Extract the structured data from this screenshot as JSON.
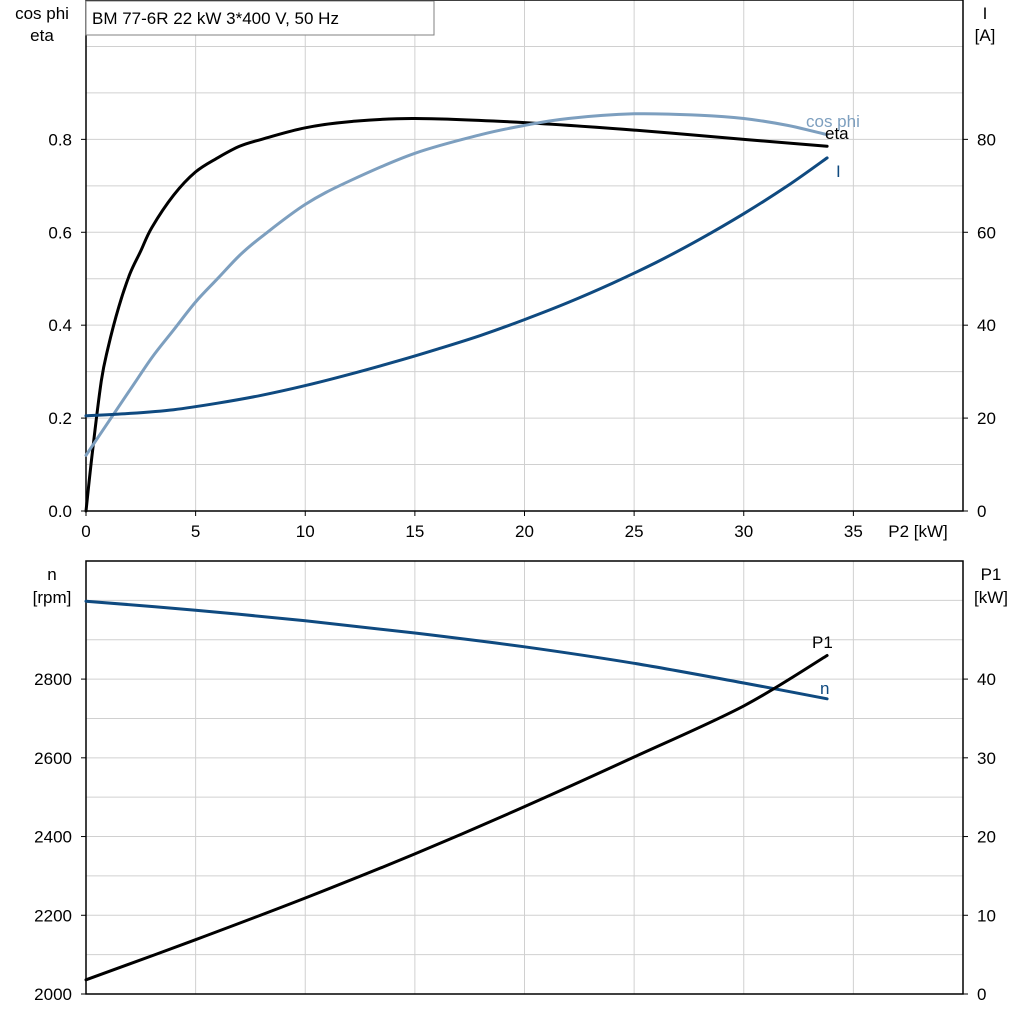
{
  "title_box": "BM 77-6R   22 kW   3*400 V, 50 Hz",
  "colors": {
    "black": "#000000",
    "dark_blue": "#0f4a80",
    "light_blue": "#7d9fbf"
  },
  "chart_data": [
    {
      "type": "line",
      "title": "BM 77-6R   22 kW   3*400 V, 50 Hz",
      "xlabel": "P2 [kW]",
      "ylabel_left": [
        "cos phi",
        "eta"
      ],
      "ylabel_right": [
        "I",
        "[A]"
      ],
      "xlim": [
        0,
        40
      ],
      "ylim_left": [
        0,
        1.1
      ],
      "ylim_right": [
        0,
        110
      ],
      "x_ticks": [
        "0",
        "5",
        "10",
        "15",
        "20",
        "25",
        "30",
        "35"
      ],
      "y_left_ticks": [
        "0.0",
        "0.2",
        "0.4",
        "0.6",
        "0.8"
      ],
      "y_right_ticks": [
        "0",
        "20",
        "40",
        "60",
        "80"
      ],
      "grid": true,
      "series": [
        {
          "name": "eta",
          "axis": "left",
          "color": "#000000",
          "x": [
            0,
            0.3,
            0.7,
            1.0,
            1.5,
            2.0,
            2.5,
            3.0,
            4.0,
            5.0,
            6.0,
            7.0,
            8.0,
            10.0,
            12.0,
            15.0,
            20.0,
            25.0,
            30.0,
            33.8
          ],
          "y": [
            0,
            0.13,
            0.28,
            0.35,
            0.44,
            0.51,
            0.56,
            0.61,
            0.68,
            0.73,
            0.76,
            0.785,
            0.8,
            0.825,
            0.838,
            0.845,
            0.836,
            0.82,
            0.8,
            0.785
          ]
        },
        {
          "name": "cos phi",
          "axis": "left",
          "color": "#7d9fbf",
          "x": [
            0,
            1,
            2,
            3,
            4,
            5,
            6,
            7,
            8,
            10,
            12,
            15,
            18,
            20,
            22,
            25,
            28,
            30,
            32,
            33.8
          ],
          "y": [
            0.12,
            0.19,
            0.26,
            0.33,
            0.39,
            0.45,
            0.5,
            0.55,
            0.59,
            0.66,
            0.71,
            0.77,
            0.81,
            0.83,
            0.845,
            0.855,
            0.852,
            0.845,
            0.83,
            0.81
          ]
        },
        {
          "name": "I",
          "axis": "right",
          "color": "#0f4a80",
          "x": [
            0,
            2,
            4,
            6,
            8,
            10,
            12,
            14,
            16,
            18,
            20,
            22,
            24,
            26,
            28,
            30,
            32,
            33.8
          ],
          "y": [
            20.5,
            21,
            21.8,
            23.2,
            24.9,
            27,
            29.4,
            32,
            34.8,
            37.8,
            41.2,
            44.9,
            49,
            53.5,
            58.5,
            64,
            70,
            76
          ]
        }
      ]
    },
    {
      "type": "line",
      "xlabel": "",
      "ylabel_left": [
        "n",
        "[rpm]"
      ],
      "ylabel_right": [
        "P1",
        "[kW]"
      ],
      "xlim": [
        0,
        40
      ],
      "ylim_left": [
        2000,
        3100
      ],
      "ylim_right": [
        0,
        55
      ],
      "y_left_ticks": [
        "2000",
        "2200",
        "2400",
        "2600",
        "2800"
      ],
      "y_right_ticks": [
        "0",
        "10",
        "20",
        "30",
        "40"
      ],
      "grid": true,
      "series": [
        {
          "name": "n",
          "axis": "left",
          "color": "#0f4a80",
          "x": [
            0,
            5,
            10,
            15,
            20,
            25,
            30,
            33.8
          ],
          "y": [
            2998,
            2975,
            2948,
            2917,
            2882,
            2840,
            2790,
            2750
          ]
        },
        {
          "name": "P1",
          "axis": "right",
          "color": "#000000",
          "x": [
            0,
            5,
            10,
            15,
            20,
            25,
            30,
            33.8
          ],
          "y": [
            1.8,
            6.9,
            12.2,
            17.8,
            23.8,
            30.1,
            36.6,
            43.0
          ]
        }
      ]
    }
  ]
}
